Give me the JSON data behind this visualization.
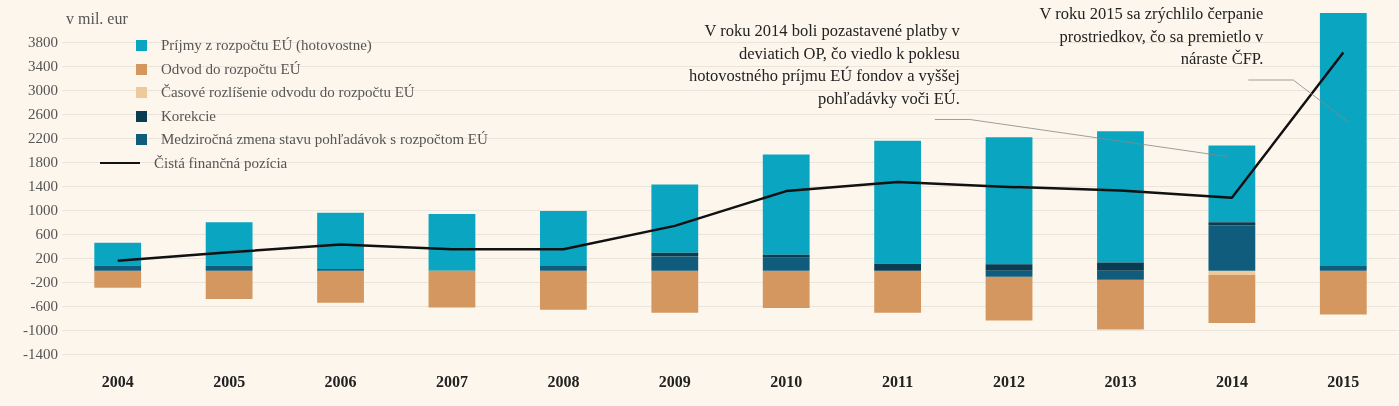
{
  "chart_data": {
    "type": "bar",
    "stacked": true,
    "ylabel": "v mil. eur",
    "categories": [
      "2004",
      "2005",
      "2006",
      "2007",
      "2008",
      "2009",
      "2010",
      "2011",
      "2012",
      "2013",
      "2014",
      "2015"
    ],
    "series": [
      {
        "name": "Medziročná zmena stavu pohľadávok s rozpočtom EÚ",
        "color": "#0f5c7c",
        "values": [
          90,
          90,
          30,
          null,
          80,
          240,
          220,
          null,
          -100,
          -150,
          760,
          80
        ]
      },
      {
        "name": "Korekcie",
        "color": "#0b3d52",
        "values": [
          null,
          null,
          null,
          null,
          null,
          60,
          50,
          120,
          110,
          140,
          50,
          null
        ]
      },
      {
        "name": "Časové rozlíšenie odvodu do rozpočtu EÚ",
        "color": "#efc99a",
        "values": [
          null,
          null,
          null,
          null,
          null,
          null,
          null,
          null,
          null,
          null,
          -60,
          null
        ]
      },
      {
        "name": "Odvod do rozpočtu EÚ",
        "color": "#d4975f",
        "values": [
          -280,
          -470,
          -530,
          -610,
          -650,
          -700,
          -620,
          -700,
          -730,
          -830,
          -810,
          -730
        ]
      },
      {
        "name": "Príjmy z rozpočtu EÚ (hotovostne)",
        "color": "#0aa5c0",
        "values": [
          380,
          720,
          940,
          950,
          920,
          1140,
          1670,
          2050,
          2120,
          2190,
          1280,
          4220
        ]
      },
      {
        "name": "Čistá finančná pozícia",
        "type": "line",
        "color": "#111111",
        "marker": "none",
        "values": [
          170,
          310,
          440,
          360,
          360,
          750,
          1330,
          1480,
          1400,
          1340,
          1220,
          3640
        ]
      }
    ],
    "ylim": [
      -1400,
      4300
    ],
    "yticks": [
      -1400,
      -1000,
      -600,
      -200,
      200,
      600,
      1000,
      1400,
      1800,
      2200,
      2600,
      3000,
      3400,
      3800
    ],
    "grid": "y",
    "legend": "top left",
    "annotations": [
      "V roku 2014 boli pozastavené platby v deviatich OP, čo viedlo k poklesu hotovostného príjmu EÚ fondov a vyššej pohľadávky voči EÚ.",
      "V roku 2015 sa zrýchlilo čerpanie prostriedkov, čo sa premietlo v náraste ČFP."
    ]
  }
}
